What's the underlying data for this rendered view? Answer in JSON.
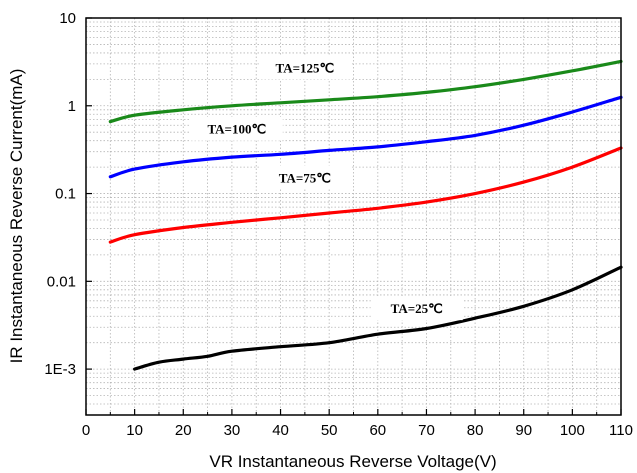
{
  "chart_data": {
    "type": "line",
    "title": "",
    "xlabel": "VR Instantaneous Reverse Voltage(V)",
    "ylabel": "IR Instantaneous Reverse Current(mA)",
    "xlim": [
      0,
      110
    ],
    "ylim": [
      0.0003,
      10
    ],
    "y_scale": "log",
    "grid": true,
    "legend": "none",
    "x_ticks": [
      "0",
      "10",
      "20",
      "30",
      "40",
      "50",
      "60",
      "70",
      "80",
      "90",
      "100",
      "110"
    ],
    "y_ticks": [
      {
        "label": "10",
        "value": 10
      },
      {
        "label": "1",
        "value": 1
      },
      {
        "label": "0.1",
        "value": 0.1
      },
      {
        "label": "0.01",
        "value": 0.01
      },
      {
        "label": "1E-3",
        "value": 0.001
      }
    ],
    "series": [
      {
        "label": "TA=125℃",
        "color": "#1a8a1a",
        "label_x": 45,
        "label_y": 2.6,
        "points": [
          [
            5,
            0.66
          ],
          [
            10,
            0.78
          ],
          [
            20,
            0.9
          ],
          [
            30,
            1.0
          ],
          [
            40,
            1.08
          ],
          [
            50,
            1.17
          ],
          [
            60,
            1.27
          ],
          [
            70,
            1.42
          ],
          [
            80,
            1.65
          ],
          [
            90,
            2.0
          ],
          [
            100,
            2.5
          ],
          [
            110,
            3.2
          ]
        ]
      },
      {
        "label": "TA=100℃",
        "color": "#0000ff",
        "label_x": 31,
        "label_y": 0.52,
        "points": [
          [
            5,
            0.155
          ],
          [
            10,
            0.19
          ],
          [
            20,
            0.23
          ],
          [
            30,
            0.26
          ],
          [
            40,
            0.28
          ],
          [
            50,
            0.31
          ],
          [
            60,
            0.34
          ],
          [
            70,
            0.39
          ],
          [
            80,
            0.46
          ],
          [
            90,
            0.6
          ],
          [
            100,
            0.85
          ],
          [
            110,
            1.25
          ]
        ]
      },
      {
        "label": "TA=75℃",
        "color": "#ff0000",
        "label_x": 45,
        "label_y": 0.145,
        "points": [
          [
            5,
            0.028
          ],
          [
            10,
            0.034
          ],
          [
            20,
            0.041
          ],
          [
            30,
            0.047
          ],
          [
            40,
            0.053
          ],
          [
            50,
            0.06
          ],
          [
            60,
            0.068
          ],
          [
            70,
            0.08
          ],
          [
            80,
            0.1
          ],
          [
            90,
            0.135
          ],
          [
            100,
            0.2
          ],
          [
            110,
            0.33
          ]
        ]
      },
      {
        "label": "TA=25℃",
        "color": "#000000",
        "label_x": 68,
        "label_y": 0.0047,
        "points": [
          [
            10,
            0.001
          ],
          [
            15,
            0.0012
          ],
          [
            20,
            0.0013
          ],
          [
            25,
            0.0014
          ],
          [
            30,
            0.0016
          ],
          [
            40,
            0.0018
          ],
          [
            50,
            0.002
          ],
          [
            60,
            0.0025
          ],
          [
            70,
            0.0029
          ],
          [
            80,
            0.0038
          ],
          [
            90,
            0.0052
          ],
          [
            100,
            0.008
          ],
          [
            110,
            0.0145
          ]
        ]
      }
    ]
  }
}
